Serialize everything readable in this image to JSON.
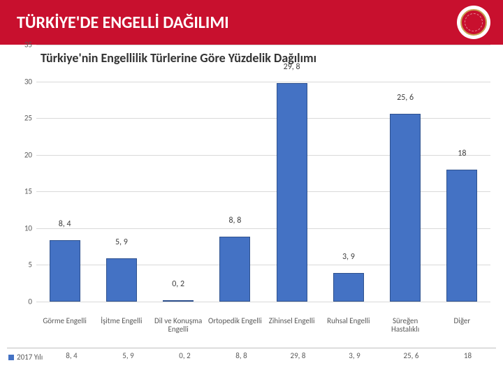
{
  "header": {
    "title": "TÜRKİYE'DE ENGELLİ DAĞILIMI"
  },
  "chart": {
    "type": "bar",
    "title": "Türkiye'nin Engellilik Türlerine Göre Yüzdelik Dağılımı",
    "ylim": [
      0,
      35
    ],
    "ytick_step": 5,
    "yticks": [
      0,
      5,
      10,
      15,
      20,
      25,
      30,
      35
    ],
    "bar_color": "#4472c4",
    "bar_border": "#2f528f",
    "grid_color": "#d9d9d9",
    "background_color": "#ffffff",
    "label_color": "#404040",
    "axis_color": "#595959",
    "title_fontsize": 18,
    "tick_fontsize": 11,
    "bar_width": 0.54,
    "series_name": "2017 Yılı",
    "categories": [
      "Görme Engelli",
      "İşitme Engelli",
      "Dil ve Konuşma Engelli",
      "Ortopedik Engelli",
      "Zihinsel Engelli",
      "Ruhsal Engelli",
      "Süreğen Hastalıklı",
      "Diğer"
    ],
    "values": [
      8.4,
      5.9,
      0.2,
      8.8,
      29.8,
      3.9,
      25.6,
      18
    ],
    "value_labels": [
      "8, 4",
      "5, 9",
      "0, 2",
      "8, 8",
      "29, 8",
      "3, 9",
      "25, 6",
      "18"
    ]
  }
}
